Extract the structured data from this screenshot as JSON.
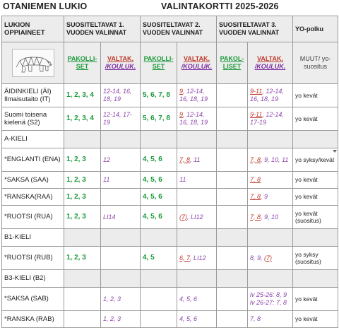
{
  "header": {
    "school": "OTANIEMEN LUKIO",
    "card": "VALINTAKORTTI 2025-2026"
  },
  "columns": {
    "subjects": "LUKION OPPIAINEET",
    "year1": "SUOSITELTAVAT 1. VUODEN VALINNAT",
    "year2": "SUOSITELTAVAT 2. VUODEN VALINNAT",
    "year3": "SUOSITELTAVAT 3. VUODEN VALINNAT",
    "yo": "YO-polku"
  },
  "sub": {
    "pak_a": "PAKOLLI-SET",
    "val_a": "VALTAK.",
    "koul": "/KOULUK.",
    "pak_b": "PAKOL-LISET",
    "muut": "MUUT/ yo-suositus",
    "logo_icon": "polar-bear-geometric-logo"
  },
  "rows": {
    "r1": {
      "subject": "ÄIDINKIELI (ÄI) Ilmaisutaito (IT)",
      "p1": "1, 2, 3, 4",
      "v1": "12-14, 16, 18, 19",
      "p2": "5, 6, 7, 8",
      "v2a": "9",
      "v2b": ", 12-14, 16, 18, 19",
      "v3a": "9-11",
      "v3b": ", 12-14, 16, 18, 19",
      "yo": "yo kevät"
    },
    "r2": {
      "subject": "Suomi toisena kielenä (S2)",
      "p1": "1, 2, 3, 4",
      "v1": "12-14, 17-19",
      "p2": "5, 6, 7, 8",
      "v2a": "9",
      "v2b": ", 12-14, 16, 18, 19",
      "v3a": "9-11",
      "v3b": ", 12-14, 17-19",
      "yo": "yo kevät"
    },
    "r3": {
      "subject": "A-KIELI"
    },
    "r4": {
      "subject": "*ENGLANTI (ENA)",
      "p1": "1, 2, 3",
      "v1": "12",
      "p2": "4, 5, 6",
      "v2a": "7, 8",
      "v2b": ", 11",
      "v3a": "7, 8",
      "v3b": ", 9, 10, 11",
      "yo": "yo syksy/kevät"
    },
    "r5": {
      "subject": "*SAKSA (SAA)",
      "p1": "1, 2, 3",
      "v1": "11",
      "p2": "4, 5, 6",
      "v2b": "11",
      "v3a": "7, 8",
      "yo": "yo kevät"
    },
    "r6": {
      "subject": "*RANSKA(RAA)",
      "p1": "1, 2, 3",
      "p2": "4, 5, 6",
      "v3a": "7, 8",
      "v3b": ", 9",
      "yo": "yo kevät"
    },
    "r7": {
      "subject": "*RUOTSI (RUA)",
      "p1": "1, 2, 3",
      "v1": "LI14",
      "p2": "4, 5, 6",
      "v2a": "(7)",
      "v2b": ", LI12",
      "v3a": "7, 8",
      "v3b": ", 9, 10",
      "yo": "yo kevät (suositus)"
    },
    "r8": {
      "subject": "B1-KIELI"
    },
    "r9": {
      "subject": "*RUOTSI (RUB)",
      "p1": "1, 2, 3",
      "p2": "4, 5",
      "v2a": "6, 7",
      "v2b": ", LI12",
      "v3b": "8, 9, ",
      "v3a": "(7)",
      "yo": "yo syksy (suositus)"
    },
    "r10": {
      "subject": "B3-KIELI (B2)"
    },
    "r11": {
      "subject": "*SAKSA (SAB)",
      "v1": "1, 2, 3",
      "v2": "4, 5, 6",
      "v3": "lv 25-26: 8, 9 lv 26-27: 7, 8",
      "yo": "yo kevät"
    },
    "r12": {
      "subject": "*RANSKA (RAB)",
      "v1": "1, 2, 3",
      "v2": "4, 5, 6",
      "v3": "7, 8",
      "yo": "yo kevät"
    }
  }
}
